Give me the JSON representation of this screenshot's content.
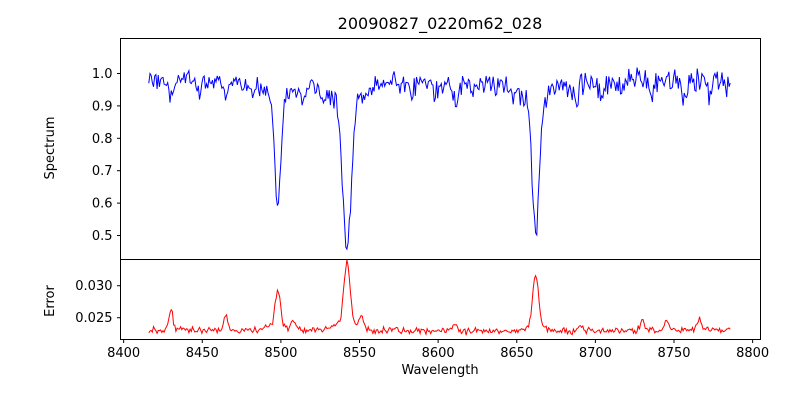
{
  "figure": {
    "background": "#ffffff",
    "spine_color": "#000000",
    "text_color": "#000000"
  },
  "chart_data": [
    {
      "type": "line",
      "title": "20090827_0220m62_028",
      "ylabel": "Spectrum",
      "series_name": "spectrum",
      "series_color": "#0000ff",
      "xlim": [
        8398,
        8805
      ],
      "ylim": [
        0.426,
        1.108
      ],
      "x_start": 8416,
      "x_end": 8786,
      "x_step": 0.75,
      "yticks": [
        {
          "value": 0.5,
          "label": "0.5"
        },
        {
          "value": 0.6,
          "label": "0.6"
        },
        {
          "value": 0.7,
          "label": "0.7"
        },
        {
          "value": 0.8,
          "label": "0.8"
        },
        {
          "value": 0.9,
          "label": "0.9"
        },
        {
          "value": 1.0,
          "label": "1.0"
        }
      ],
      "grid": false,
      "legend": "none",
      "baseline": 0.972,
      "noise_amp": 0.02,
      "noise_grow": 0.013,
      "wave_amp": 0.006,
      "absorption_lines": [
        {
          "center": 8498,
          "depth": 0.33,
          "sigma": 2.0,
          "wing_depth": 0.045,
          "wing_sigma": 7
        },
        {
          "center": 8542,
          "depth": 0.45,
          "sigma": 2.6,
          "wing_depth": 0.06,
          "wing_sigma": 10
        },
        {
          "center": 8662,
          "depth": 0.4,
          "sigma": 2.2,
          "wing_depth": 0.055,
          "wing_sigma": 9
        },
        {
          "center": 8430,
          "depth": 0.05,
          "sigma": 1.3
        },
        {
          "center": 8448,
          "depth": 0.035,
          "sigma": 1.2
        },
        {
          "center": 8465,
          "depth": 0.045,
          "sigma": 1.3
        },
        {
          "center": 8481,
          "depth": 0.03,
          "sigma": 1.1
        },
        {
          "center": 8514,
          "depth": 0.045,
          "sigma": 1.3
        },
        {
          "center": 8527,
          "depth": 0.03,
          "sigma": 1.1
        },
        {
          "center": 8583,
          "depth": 0.035,
          "sigma": 1.2
        },
        {
          "center": 8598,
          "depth": 0.03,
          "sigma": 1.2
        },
        {
          "center": 8611,
          "depth": 0.065,
          "sigma": 1.5
        },
        {
          "center": 8622,
          "depth": 0.035,
          "sigma": 1.2
        },
        {
          "center": 8648,
          "depth": 0.03,
          "sigma": 1.2
        },
        {
          "center": 8688,
          "depth": 0.05,
          "sigma": 1.4
        },
        {
          "center": 8704,
          "depth": 0.04,
          "sigma": 1.3
        },
        {
          "center": 8717,
          "depth": 0.045,
          "sigma": 1.3
        },
        {
          "center": 8736,
          "depth": 0.035,
          "sigma": 1.2
        },
        {
          "center": 8757,
          "depth": 0.045,
          "sigma": 1.3
        },
        {
          "center": 8772,
          "depth": 0.04,
          "sigma": 1.3
        }
      ]
    },
    {
      "type": "line",
      "ylabel": "Error",
      "xlabel": "Wavelength",
      "series_name": "error",
      "series_color": "#ff0000",
      "xlim": [
        8398,
        8805
      ],
      "ylim": [
        0.0216,
        0.0341
      ],
      "x_start": 8416,
      "x_end": 8786,
      "x_step": 0.75,
      "yticks": [
        {
          "value": 0.025,
          "label": "0.025"
        },
        {
          "value": 0.03,
          "label": "0.030"
        }
      ],
      "xticks": [
        {
          "value": 8400,
          "label": "8400"
        },
        {
          "value": 8450,
          "label": "8450"
        },
        {
          "value": 8500,
          "label": "8500"
        },
        {
          "value": 8550,
          "label": "8550"
        },
        {
          "value": 8600,
          "label": "8600"
        },
        {
          "value": 8650,
          "label": "8650"
        },
        {
          "value": 8700,
          "label": "8700"
        },
        {
          "value": 8750,
          "label": "8750"
        },
        {
          "value": 8800,
          "label": "8800"
        }
      ],
      "grid": false,
      "legend": "none",
      "baseline": 0.023,
      "noise_amp": 0.00045,
      "peaks": [
        {
          "center": 8430,
          "height": 0.0033,
          "sigma": 1.3
        },
        {
          "center": 8465,
          "height": 0.0024,
          "sigma": 1.2
        },
        {
          "center": 8498,
          "height": 0.0056,
          "sigma": 1.6,
          "wing_height": 0.0008,
          "wing_sigma": 5
        },
        {
          "center": 8508,
          "height": 0.0014,
          "sigma": 1.2
        },
        {
          "center": 8542,
          "height": 0.0095,
          "sigma": 1.9,
          "wing_height": 0.0012,
          "wing_sigma": 7
        },
        {
          "center": 8551,
          "height": 0.0022,
          "sigma": 1.2
        },
        {
          "center": 8611,
          "height": 0.001,
          "sigma": 1.5
        },
        {
          "center": 8662,
          "height": 0.0078,
          "sigma": 1.8,
          "wing_height": 0.001,
          "wing_sigma": 6
        },
        {
          "center": 8690,
          "height": 0.001,
          "sigma": 1.5
        },
        {
          "center": 8730,
          "height": 0.0013,
          "sigma": 1.5
        },
        {
          "center": 8745,
          "height": 0.0014,
          "sigma": 1.3
        },
        {
          "center": 8766,
          "height": 0.0017,
          "sigma": 1.4
        }
      ]
    }
  ]
}
